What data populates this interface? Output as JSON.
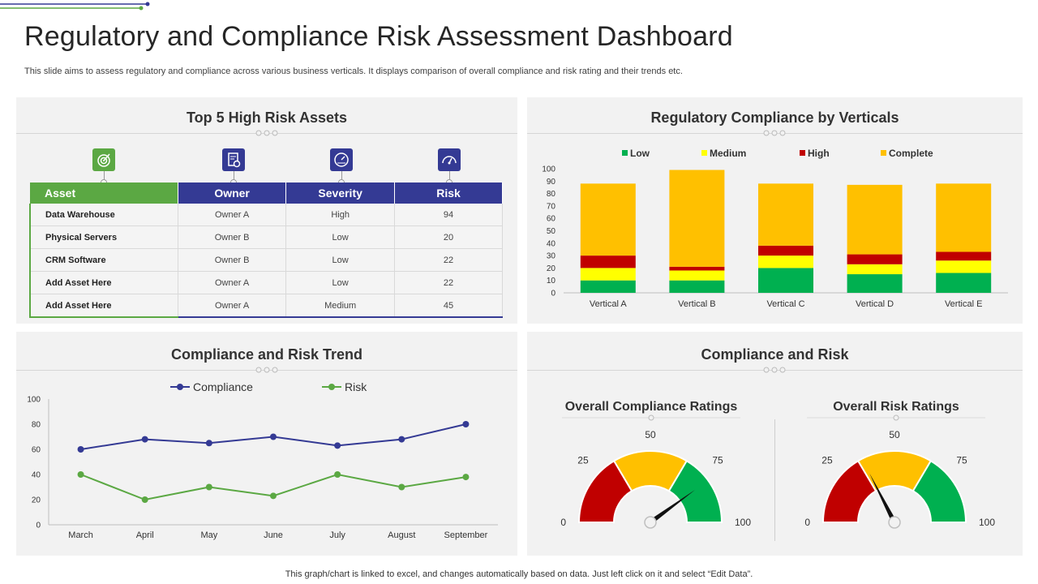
{
  "header": {
    "title": "Regulatory and Compliance Risk Assessment Dashboard",
    "subtitle": "This slide aims to assess regulatory and compliance across various business verticals. It displays comparison of overall compliance and risk rating and their trends etc."
  },
  "colors": {
    "green": "#00b050",
    "yellow": "#ffff00",
    "red": "#c00000",
    "amber": "#ffc000",
    "navy": "#343a94",
    "leaf": "#5ba843"
  },
  "assets_panel": {
    "title": "Top 5 High Risk Assets",
    "icons": [
      "target-icon",
      "document-settings-icon",
      "speedometer-icon",
      "gauge-icon"
    ],
    "columns": [
      "Asset",
      "Owner",
      "Severity",
      "Risk"
    ],
    "rows": [
      {
        "asset": "Data Warehouse",
        "owner": "Owner A",
        "severity": "High",
        "risk": "94"
      },
      {
        "asset": "Physical Servers",
        "owner": "Owner B",
        "severity": "Low",
        "risk": "20"
      },
      {
        "asset": "CRM Software",
        "owner": "Owner B",
        "severity": "Low",
        "risk": "22"
      },
      {
        "asset": "Add Asset Here",
        "owner": "Owner A",
        "severity": "Low",
        "risk": "22"
      },
      {
        "asset": "Add Asset Here",
        "owner": "Owner A",
        "severity": "Medium",
        "risk": "45"
      }
    ]
  },
  "verticals_panel": {
    "title": "Regulatory Compliance by Verticals"
  },
  "trend_panel": {
    "title": "Compliance and Risk Trend"
  },
  "ratings_panel": {
    "title": "Compliance and Risk",
    "left_title": "Overall  Compliance Ratings",
    "right_title": "Overall Risk Ratings"
  },
  "footer": "This graph/chart is linked to excel,  and changes automatically based on data. Just left click on it and select “Edit Data”.",
  "chart_data": [
    {
      "type": "bar",
      "stacked": true,
      "categories": [
        "Vertical A",
        "Vertical B",
        "Vertical C",
        "Vertical D",
        "Vertical E"
      ],
      "series": [
        {
          "name": "Low",
          "color": "#00b050",
          "values": [
            10,
            10,
            20,
            15,
            16
          ]
        },
        {
          "name": "Medium",
          "color": "#ffff00",
          "values": [
            10,
            8,
            10,
            8,
            10
          ]
        },
        {
          "name": "High",
          "color": "#c00000",
          "values": [
            10,
            3,
            8,
            8,
            7
          ]
        },
        {
          "name": "Complete",
          "color": "#ffc000",
          "values": [
            58,
            78,
            50,
            56,
            55
          ]
        }
      ],
      "ylim": [
        0,
        100
      ],
      "yticks": [
        0,
        10,
        20,
        30,
        40,
        50,
        60,
        70,
        80,
        90,
        100
      ],
      "legend": "top",
      "grid": false
    },
    {
      "type": "line",
      "categories": [
        "March",
        "April",
        "May",
        "June",
        "July",
        "August",
        "September"
      ],
      "series": [
        {
          "name": "Compliance",
          "color": "#343a94",
          "values": [
            60,
            68,
            65,
            70,
            63,
            68,
            80
          ]
        },
        {
          "name": "Risk",
          "color": "#5ba843",
          "values": [
            40,
            20,
            30,
            23,
            40,
            30,
            38
          ]
        }
      ],
      "ylim": [
        0,
        100
      ],
      "yticks": [
        0,
        20,
        40,
        60,
        80,
        100
      ],
      "legend": "top",
      "grid": false
    },
    {
      "type": "gauge",
      "name": "Overall  Compliance Ratings",
      "scale": [
        0,
        100
      ],
      "tick_labels": [
        "0",
        "25",
        "50",
        "75",
        "100"
      ],
      "bands": [
        {
          "from": 0,
          "to": 33,
          "color": "#c00000"
        },
        {
          "from": 33,
          "to": 67,
          "color": "#ffc000"
        },
        {
          "from": 67,
          "to": 100,
          "color": "#00b050"
        }
      ],
      "value": 80
    },
    {
      "type": "gauge",
      "name": "Overall Risk Ratings",
      "scale": [
        0,
        100
      ],
      "tick_labels": [
        "0",
        "25",
        "50",
        "75",
        "100"
      ],
      "bands": [
        {
          "from": 0,
          "to": 33,
          "color": "#c00000"
        },
        {
          "from": 33,
          "to": 67,
          "color": "#ffc000"
        },
        {
          "from": 67,
          "to": 100,
          "color": "#00b050"
        }
      ],
      "value": 35
    }
  ]
}
